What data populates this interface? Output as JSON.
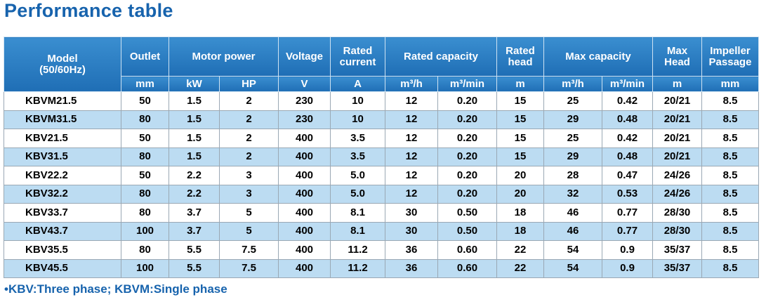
{
  "header": {
    "title": "Performance table"
  },
  "table": {
    "groups": [
      "Model\n(50/60Hz)",
      "Outlet",
      "Motor power",
      "Voltage",
      "Rated\ncurrent",
      "Rated capacity",
      "Rated\nhead",
      "Max capacity",
      "Max\nHead",
      "Impeller\nPassage"
    ],
    "units": [
      "mm",
      "kW",
      "HP",
      "V",
      "A",
      "m³/h",
      "m³/min",
      "m",
      "m³/h",
      "m³/min",
      "m",
      "mm"
    ],
    "rows": [
      [
        "KBVM21.5",
        "50",
        "1.5",
        "2",
        "230",
        "10",
        "12",
        "0.20",
        "15",
        "25",
        "0.42",
        "20/21",
        "8.5"
      ],
      [
        "KBVM31.5",
        "80",
        "1.5",
        "2",
        "230",
        "10",
        "12",
        "0.20",
        "15",
        "29",
        "0.48",
        "20/21",
        "8.5"
      ],
      [
        "KBV21.5",
        "50",
        "1.5",
        "2",
        "400",
        "3.5",
        "12",
        "0.20",
        "15",
        "25",
        "0.42",
        "20/21",
        "8.5"
      ],
      [
        "KBV31.5",
        "80",
        "1.5",
        "2",
        "400",
        "3.5",
        "12",
        "0.20",
        "15",
        "29",
        "0.48",
        "20/21",
        "8.5"
      ],
      [
        "KBV22.2",
        "50",
        "2.2",
        "3",
        "400",
        "5.0",
        "12",
        "0.20",
        "20",
        "28",
        "0.47",
        "24/26",
        "8.5"
      ],
      [
        "KBV32.2",
        "80",
        "2.2",
        "3",
        "400",
        "5.0",
        "12",
        "0.20",
        "20",
        "32",
        "0.53",
        "24/26",
        "8.5"
      ],
      [
        "KBV33.7",
        "80",
        "3.7",
        "5",
        "400",
        "8.1",
        "30",
        "0.50",
        "18",
        "46",
        "0.77",
        "28/30",
        "8.5"
      ],
      [
        "KBV43.7",
        "100",
        "3.7",
        "5",
        "400",
        "8.1",
        "30",
        "0.50",
        "18",
        "46",
        "0.77",
        "28/30",
        "8.5"
      ],
      [
        "KBV35.5",
        "80",
        "5.5",
        "7.5",
        "400",
        "11.2",
        "36",
        "0.60",
        "22",
        "54",
        "0.9",
        "35/37",
        "8.5"
      ],
      [
        "KBV45.5",
        "100",
        "5.5",
        "7.5",
        "400",
        "11.2",
        "36",
        "0.60",
        "22",
        "54",
        "0.9",
        "35/37",
        "8.5"
      ]
    ]
  },
  "footnote": "•KBV:Three phase; KBVM:Single phase"
}
